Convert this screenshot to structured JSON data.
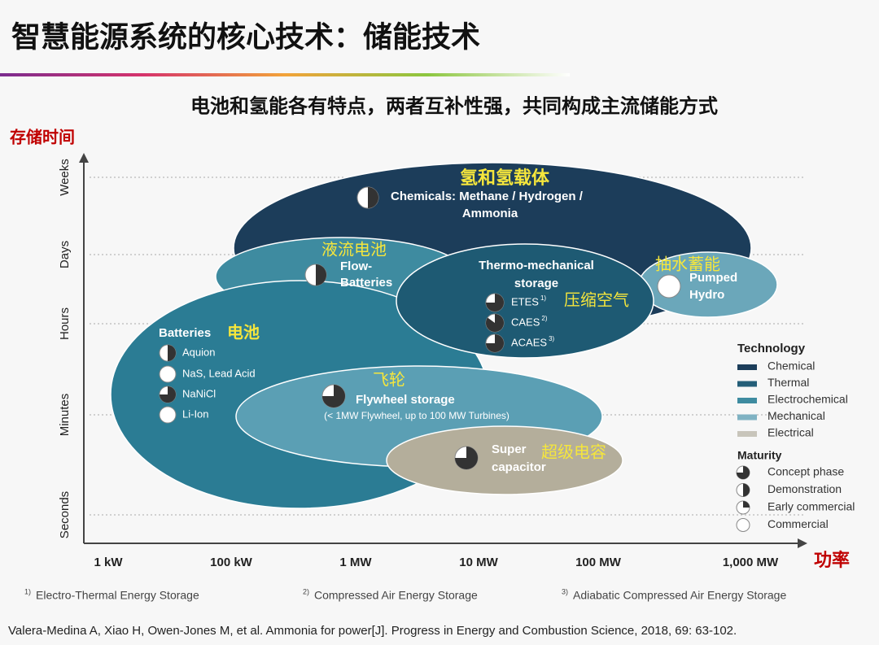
{
  "header": {
    "title": "智慧能源系统的核心技术：储能技术",
    "subtitle": "电池和氢能各有特点，两者互补性强，共同构成主流储能方式"
  },
  "axes": {
    "y_label": "存储时间",
    "y_ticks": [
      "Weeks",
      "Days",
      "Hours",
      "Minutes",
      "Seconds"
    ],
    "x_label": "功率",
    "x_ticks": [
      "1 kW",
      "100 kW",
      "1 MW",
      "10 MW",
      "100 MW",
      "1,000 MW"
    ]
  },
  "bubbles": {
    "chemical": {
      "label_cn": "氢和氢载体",
      "lines": [
        "Chemicals: Methane / Hydrogen /",
        "Ammonia"
      ]
    },
    "flow": {
      "label_cn": "液流电池",
      "lines": [
        "Flow-",
        "Batteries"
      ]
    },
    "thermo": {
      "label_cn": "压缩空气",
      "lines": [
        "Thermo-mechanical",
        "storage"
      ],
      "items": [
        {
          "name": "ETES",
          "note": "1)"
        },
        {
          "name": "CAES",
          "note": "2)"
        },
        {
          "name": "ACAES",
          "note": "3)"
        }
      ]
    },
    "pumped": {
      "label_cn": "抽水蓄能",
      "lines": [
        "Pumped",
        "Hydro"
      ]
    },
    "batteries": {
      "label_cn": "电池",
      "lines": [
        "Batteries"
      ],
      "items": [
        "Aquion",
        "NaS, Lead Acid",
        "NaNiCl",
        "Li-Ion"
      ]
    },
    "flywheel": {
      "label_cn": "飞轮",
      "lines": [
        "Flywheel storage",
        "(< 1MW Flywheel, up to 100 MW Turbines)"
      ]
    },
    "supercap": {
      "label_cn": "超级电容",
      "lines": [
        "Super",
        "capacitor"
      ]
    }
  },
  "legend": {
    "technology_title": "Technology",
    "technology": [
      "Chemical",
      "Thermal",
      "Electrochemical",
      "Mechanical",
      "Electrical"
    ],
    "maturity_title": "Maturity",
    "maturity": [
      "Concept phase",
      "Demonstration",
      "Early commercial",
      "Commercial"
    ]
  },
  "footnotes": [
    {
      "mark": "1)",
      "text": "Electro-Thermal Energy Storage"
    },
    {
      "mark": "2)",
      "text": "Compressed Air Energy Storage"
    },
    {
      "mark": "3)",
      "text": "Adiabatic Compressed Air Energy Storage"
    }
  ],
  "citation": "Valera-Medina A, Xiao H, Owen-Jones M, et al. Ammonia for power[J]. Progress in Energy and Combustion Science, 2018, 69: 63-102."
}
